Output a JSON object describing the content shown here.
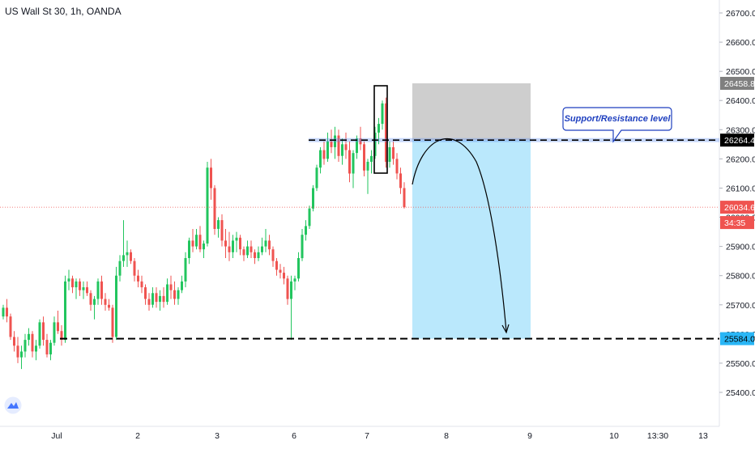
{
  "header": {
    "symbol_title": "US Wall St 30, 1h, OANDA"
  },
  "colors": {
    "up": "#26a69a",
    "up_bright": "#22c55e",
    "down": "#ef5350",
    "last_price_line": "#ef5350",
    "stop_zone": "#bdbdbd",
    "target_zone": "#b3e5fc",
    "axis_text": "#131722",
    "resistance_label": "#1e3fbf"
  },
  "icons": {
    "logo": "tradingview-logo-icon"
  },
  "chart_data": {
    "type": "candlestick",
    "title": "US Wall St 30, 1h, OANDA",
    "ylim": [
      25340,
      26740
    ],
    "grid": false,
    "y_ticks": [
      25400.0,
      25500.0,
      25600.0,
      25700.0,
      25800.0,
      25900.0,
      26000.0,
      26100.0,
      26200.0,
      26300.0,
      26400.0,
      26500.0,
      26600.0,
      26700.0
    ],
    "x_ticks": [
      "Jul",
      "2",
      "3",
      "6",
      "7",
      "8",
      "9",
      "10",
      "13:30",
      "13"
    ],
    "price_labels": [
      {
        "name": "stop",
        "value": "26458.8"
      },
      {
        "name": "resistance",
        "value": "26264.4"
      },
      {
        "name": "last",
        "value": "26034.6"
      },
      {
        "name": "countdown",
        "value": "34:35"
      },
      {
        "name": "target",
        "value": "25584.0"
      }
    ],
    "annotations": {
      "resistance_text": "Support/Resistance level",
      "resistance_level": 26264.4,
      "support_level": 25584.0,
      "stop_level": 26458.8,
      "last_price": 26034.6
    },
    "candles": [
      [
        25660,
        25700,
        25650,
        25690
      ],
      [
        25690,
        25720,
        25640,
        25660
      ],
      [
        25660,
        25670,
        25580,
        25590
      ],
      [
        25590,
        25610,
        25540,
        25560
      ],
      [
        25560,
        25590,
        25500,
        25520
      ],
      [
        25520,
        25560,
        25480,
        25540
      ],
      [
        25540,
        25600,
        25520,
        25580
      ],
      [
        25580,
        25620,
        25560,
        25600
      ],
      [
        25600,
        25610,
        25520,
        25540
      ],
      [
        25540,
        25580,
        25510,
        25560
      ],
      [
        25560,
        25650,
        25550,
        25640
      ],
      [
        25640,
        25660,
        25560,
        25580
      ],
      [
        25580,
        25600,
        25520,
        25530
      ],
      [
        25530,
        25580,
        25510,
        25570
      ],
      [
        25570,
        25660,
        25560,
        25640
      ],
      [
        25640,
        25680,
        25600,
        25610
      ],
      [
        25610,
        25630,
        25560,
        25580
      ],
      [
        25580,
        25800,
        25570,
        25780
      ],
      [
        25780,
        25820,
        25750,
        25790
      ],
      [
        25790,
        25800,
        25740,
        25760
      ],
      [
        25760,
        25790,
        25720,
        25780
      ],
      [
        25780,
        25790,
        25730,
        25750
      ],
      [
        25750,
        25780,
        25720,
        25760
      ],
      [
        25760,
        25780,
        25730,
        25740
      ],
      [
        25740,
        25750,
        25680,
        25700
      ],
      [
        25700,
        25730,
        25650,
        25720
      ],
      [
        25720,
        25790,
        25700,
        25780
      ],
      [
        25780,
        25800,
        25700,
        25720
      ],
      [
        25720,
        25740,
        25680,
        25700
      ],
      [
        25700,
        25720,
        25680,
        25690
      ],
      [
        25690,
        25700,
        25570,
        25590
      ],
      [
        25590,
        25830,
        25580,
        25800
      ],
      [
        25800,
        25870,
        25780,
        25850
      ],
      [
        25850,
        25990,
        25830,
        25870
      ],
      [
        25870,
        25920,
        25830,
        25880
      ],
      [
        25880,
        25890,
        25840,
        25850
      ],
      [
        25850,
        25860,
        25780,
        25800
      ],
      [
        25800,
        25820,
        25760,
        25780
      ],
      [
        25780,
        25800,
        25740,
        25760
      ],
      [
        25760,
        25770,
        25700,
        25720
      ],
      [
        25720,
        25740,
        25680,
        25700
      ],
      [
        25700,
        25760,
        25690,
        25740
      ],
      [
        25740,
        25760,
        25690,
        25710
      ],
      [
        25710,
        25750,
        25680,
        25730
      ],
      [
        25730,
        25760,
        25690,
        25710
      ],
      [
        25710,
        25790,
        25700,
        25770
      ],
      [
        25770,
        25800,
        25720,
        25750
      ],
      [
        25750,
        25780,
        25700,
        25720
      ],
      [
        25720,
        25760,
        25700,
        25750
      ],
      [
        25750,
        25800,
        25740,
        25780
      ],
      [
        25780,
        25880,
        25760,
        25860
      ],
      [
        25860,
        25930,
        25840,
        25920
      ],
      [
        25920,
        25960,
        25880,
        25900
      ],
      [
        25900,
        25960,
        25890,
        25940
      ],
      [
        25940,
        25970,
        25880,
        25890
      ],
      [
        25890,
        25920,
        25860,
        25910
      ],
      [
        25910,
        26190,
        25900,
        26170
      ],
      [
        26170,
        26200,
        26060,
        26100
      ],
      [
        26100,
        26110,
        25940,
        25960
      ],
      [
        25960,
        26000,
        25930,
        25990
      ],
      [
        25990,
        26010,
        25900,
        25920
      ],
      [
        25920,
        25960,
        25860,
        25900
      ],
      [
        25900,
        25950,
        25850,
        25880
      ],
      [
        25880,
        25940,
        25860,
        25920
      ],
      [
        25920,
        25950,
        25880,
        25930
      ],
      [
        25930,
        25940,
        25870,
        25890
      ],
      [
        25890,
        25900,
        25850,
        25870
      ],
      [
        25870,
        25920,
        25860,
        25900
      ],
      [
        25900,
        25920,
        25860,
        25880
      ],
      [
        25880,
        25890,
        25840,
        25860
      ],
      [
        25860,
        25900,
        25850,
        25880
      ],
      [
        25880,
        25930,
        25870,
        25900
      ],
      [
        25900,
        25960,
        25880,
        25920
      ],
      [
        25920,
        25940,
        25870,
        25890
      ],
      [
        25890,
        25900,
        25830,
        25850
      ],
      [
        25850,
        25860,
        25800,
        25820
      ],
      [
        25820,
        25840,
        25790,
        25810
      ],
      [
        25810,
        25830,
        25770,
        25790
      ],
      [
        25790,
        25800,
        25700,
        25720
      ],
      [
        25720,
        25800,
        25580,
        25780
      ],
      [
        25780,
        25800,
        25750,
        25790
      ],
      [
        25790,
        25880,
        25780,
        25860
      ],
      [
        25860,
        25960,
        25850,
        25940
      ],
      [
        25940,
        25990,
        25920,
        25970
      ],
      [
        25970,
        26040,
        25960,
        26030
      ],
      [
        26030,
        26110,
        26020,
        26100
      ],
      [
        26100,
        26180,
        26090,
        26170
      ],
      [
        26170,
        26240,
        26150,
        26230
      ],
      [
        26230,
        26260,
        26180,
        26200
      ],
      [
        26200,
        26290,
        26190,
        26260
      ],
      [
        26260,
        26300,
        26220,
        26240
      ],
      [
        26240,
        26310,
        26200,
        26280
      ],
      [
        26280,
        26300,
        26190,
        26210
      ],
      [
        26210,
        26270,
        26180,
        26250
      ],
      [
        26250,
        26290,
        26200,
        26230
      ],
      [
        26230,
        26260,
        26120,
        26150
      ],
      [
        26150,
        26230,
        26100,
        26220
      ],
      [
        26220,
        26280,
        26200,
        26270
      ],
      [
        26270,
        26310,
        26230,
        26250
      ],
      [
        26250,
        26260,
        26140,
        26160
      ],
      [
        26160,
        26200,
        26080,
        26190
      ],
      [
        26190,
        26230,
        26150,
        26210
      ],
      [
        26210,
        26310,
        26200,
        26290
      ],
      [
        26290,
        26340,
        26250,
        26320
      ],
      [
        26320,
        26400,
        26300,
        26390
      ],
      [
        26390,
        26410,
        26170,
        26190
      ],
      [
        26190,
        26260,
        26170,
        26240
      ],
      [
        26240,
        26260,
        26180,
        26200
      ],
      [
        26200,
        26220,
        26130,
        26150
      ],
      [
        26150,
        26170,
        26080,
        26100
      ],
      [
        26100,
        26120,
        26030,
        26034.6
      ]
    ]
  }
}
